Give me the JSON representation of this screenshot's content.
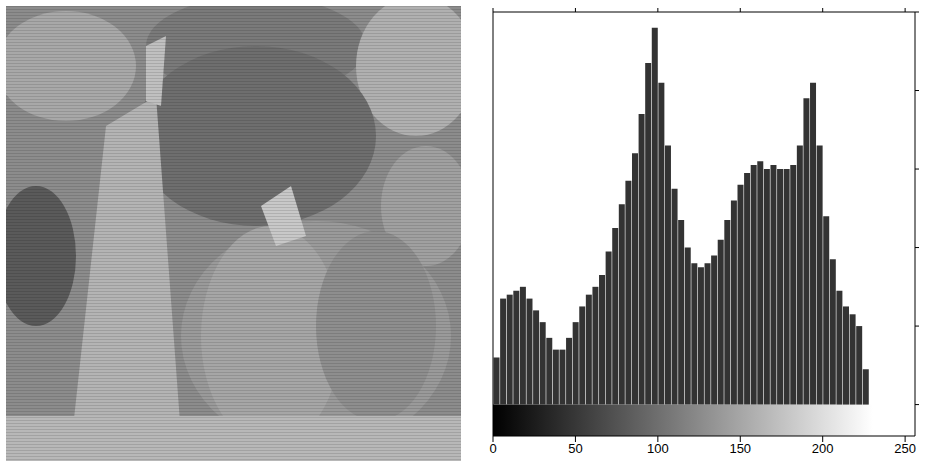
{
  "chart_data": {
    "type": "histogram",
    "bins": [
      0,
      4,
      8,
      12,
      16,
      20,
      24,
      28,
      32,
      36,
      40,
      44,
      48,
      52,
      56,
      60,
      64,
      68,
      72,
      76,
      80,
      84,
      88,
      92,
      96,
      100,
      104,
      108,
      112,
      116,
      120,
      124,
      128,
      132,
      136,
      140,
      144,
      148,
      152,
      156,
      160,
      164,
      168,
      172,
      176,
      180,
      184,
      188,
      192,
      196,
      200,
      204,
      208,
      212,
      216,
      220,
      224,
      228
    ],
    "values": [
      12,
      27,
      28,
      29,
      30,
      27,
      24,
      21,
      17,
      14,
      14,
      17,
      21,
      25,
      28,
      30,
      33,
      39,
      45,
      51,
      57,
      64,
      74,
      87,
      96,
      82,
      66,
      55,
      47,
      40,
      36,
      35,
      36,
      38,
      42,
      47,
      52,
      56,
      59,
      61,
      62,
      60,
      61,
      60,
      60,
      61,
      66,
      78,
      82,
      66,
      48,
      37,
      29,
      25,
      23,
      20,
      9
    ],
    "color": "#333333",
    "xlim": [
      0,
      256
    ],
    "xticks": [
      0,
      50,
      100,
      150,
      200,
      250
    ],
    "ylim": [
      -8,
      100
    ],
    "yticks": [
      0,
      20,
      40,
      60,
      80,
      100
    ],
    "tick_labels": "x"
  }
}
